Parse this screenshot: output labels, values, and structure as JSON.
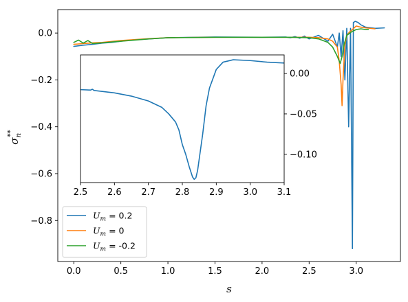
{
  "chart_data": [
    {
      "type": "line",
      "xlabel": "s",
      "ylabel_base": "σ",
      "ylabel_sub": "n",
      "ylabel_sup": "**",
      "xlim": [
        -0.17,
        3.47
      ],
      "ylim": [
        -0.975,
        0.1
      ],
      "xticks": [
        0.0,
        0.5,
        1.0,
        1.5,
        2.0,
        2.5,
        3.0
      ],
      "xtick_labels": [
        "0.0",
        "0.5",
        "1.0",
        "1.5",
        "2.0",
        "2.5",
        "3.0"
      ],
      "yticks": [
        0.0,
        -0.2,
        -0.4,
        -0.6,
        -0.8
      ],
      "ytick_labels": [
        "0.0",
        "−0.2",
        "−0.4",
        "−0.6",
        "−0.8"
      ],
      "legend_position": "lower-left",
      "series": [
        {
          "name": "U_m =  0.2",
          "legend_var": "U",
          "legend_sub": "m",
          "legend_value": " =  0.2",
          "color": "#1f77b4",
          "x": [
            0.0,
            0.1,
            0.2,
            0.3,
            0.4,
            0.6,
            0.8,
            1.0,
            1.5,
            2.0,
            2.25,
            2.3,
            2.35,
            2.4,
            2.45,
            2.5,
            2.6,
            2.7,
            2.75,
            2.8,
            2.82,
            2.84,
            2.86,
            2.88,
            2.9,
            2.92,
            2.94,
            2.96,
            2.97,
            2.99,
            3.02,
            3.05,
            3.1,
            3.2,
            3.3
          ],
          "y": [
            -0.057,
            -0.052,
            -0.048,
            -0.043,
            -0.04,
            -0.03,
            -0.025,
            -0.02,
            -0.017,
            -0.018,
            -0.017,
            -0.02,
            -0.015,
            -0.022,
            -0.013,
            -0.025,
            -0.01,
            -0.035,
            -0.005,
            -0.06,
            0.0,
            -0.1,
            0.01,
            -0.2,
            0.02,
            -0.4,
            0.02,
            -0.92,
            0.045,
            0.05,
            0.045,
            0.035,
            0.025,
            0.02,
            0.022
          ]
        },
        {
          "name": "U_m =  0",
          "legend_var": "U",
          "legend_sub": "m",
          "legend_value": " =  0",
          "color": "#ff7f0e",
          "x": [
            0.0,
            0.1,
            0.2,
            0.3,
            0.5,
            0.8,
            1.0,
            1.5,
            2.0,
            2.3,
            2.5,
            2.6,
            2.7,
            2.75,
            2.8,
            2.82,
            2.84,
            2.85,
            2.86,
            2.88,
            2.9,
            2.93,
            2.96,
            3.0,
            3.05,
            3.1,
            3.2
          ],
          "y": [
            -0.048,
            -0.045,
            -0.042,
            -0.04,
            -0.032,
            -0.024,
            -0.02,
            -0.018,
            -0.018,
            -0.018,
            -0.018,
            -0.02,
            -0.025,
            -0.035,
            -0.06,
            -0.12,
            -0.22,
            -0.31,
            -0.2,
            -0.05,
            -0.01,
            0.005,
            0.015,
            0.03,
            0.025,
            0.022,
            0.018
          ]
        },
        {
          "name": "U_m =  -0.2",
          "legend_var": "U",
          "legend_sub": "m",
          "legend_value": " =  -0.2",
          "color": "#2ca02c",
          "x": [
            0.0,
            0.05,
            0.1,
            0.15,
            0.2,
            0.3,
            0.5,
            0.8,
            1.0,
            1.5,
            2.0,
            2.3,
            2.5,
            2.6,
            2.7,
            2.75,
            2.8,
            2.83,
            2.85,
            2.87,
            2.9,
            2.95,
            3.0,
            3.05,
            3.1,
            3.13
          ],
          "y": [
            -0.04,
            -0.03,
            -0.043,
            -0.032,
            -0.045,
            -0.042,
            -0.035,
            -0.025,
            -0.02,
            -0.018,
            -0.018,
            -0.018,
            -0.02,
            -0.025,
            -0.04,
            -0.06,
            -0.1,
            -0.13,
            -0.1,
            -0.05,
            -0.01,
            0.005,
            0.015,
            0.018,
            0.015,
            0.015
          ]
        }
      ]
    },
    {
      "type": "line",
      "xlim": [
        2.5,
        3.1
      ],
      "ylim": [
        -0.135,
        0.023
      ],
      "xticks": [
        2.5,
        2.6,
        2.7,
        2.8,
        2.9,
        3.0,
        3.1
      ],
      "xtick_labels": [
        "2.5",
        "2.6",
        "2.7",
        "2.8",
        "2.9",
        "3.0",
        "3.1"
      ],
      "yticks": [
        0.0,
        -0.05,
        -0.1
      ],
      "ytick_labels": [
        "0.00",
        "−0.05",
        "−0.10"
      ],
      "series": [
        {
          "color": "#1f77b4",
          "x": [
            2.5,
            2.53,
            2.535,
            2.54,
            2.6,
            2.65,
            2.7,
            2.74,
            2.76,
            2.78,
            2.79,
            2.8,
            2.81,
            2.82,
            2.83,
            2.835,
            2.84,
            2.845,
            2.85,
            2.86,
            2.87,
            2.88,
            2.9,
            2.92,
            2.95,
            3.0,
            3.05,
            3.1
          ],
          "y": [
            -0.02,
            -0.0205,
            -0.0195,
            -0.021,
            -0.024,
            -0.028,
            -0.034,
            -0.042,
            -0.05,
            -0.06,
            -0.07,
            -0.088,
            -0.1,
            -0.115,
            -0.128,
            -0.131,
            -0.129,
            -0.12,
            -0.105,
            -0.075,
            -0.04,
            -0.018,
            0.005,
            0.014,
            0.017,
            0.016,
            0.014,
            0.013
          ]
        }
      ]
    }
  ]
}
